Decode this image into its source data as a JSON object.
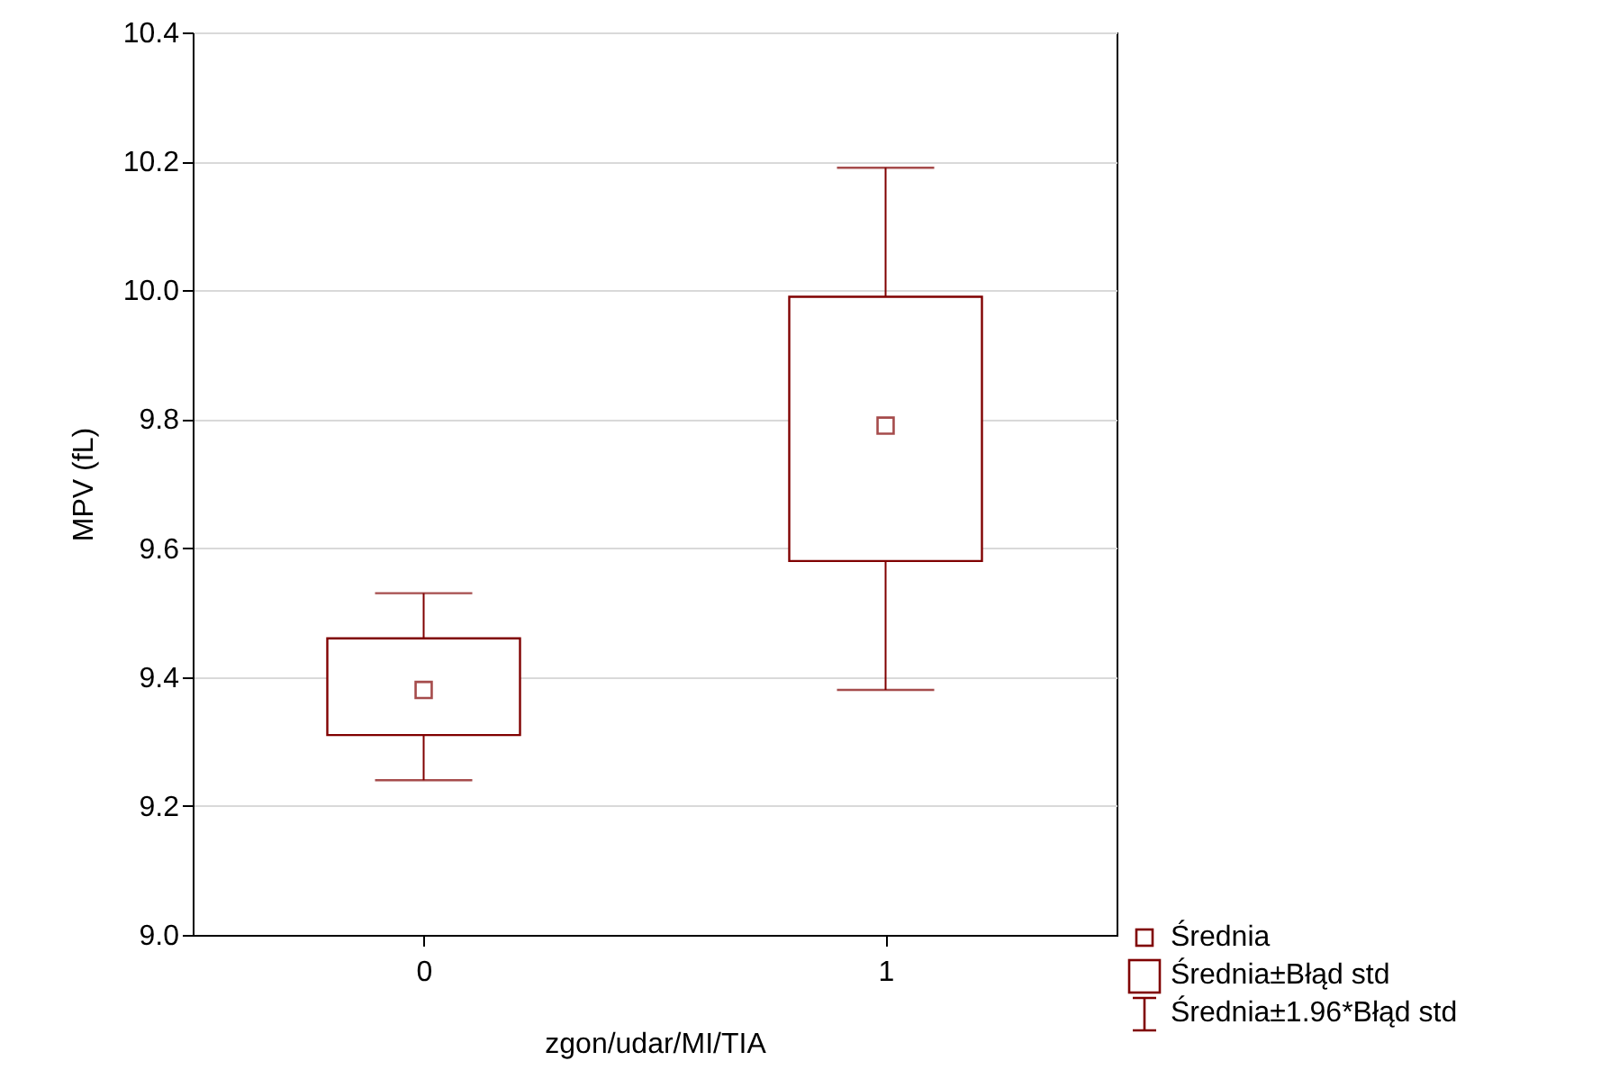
{
  "chart_data": {
    "type": "box",
    "xlabel": "zgon/udar/MI/TIA",
    "ylabel": "MPV (fL)",
    "categories": [
      "0",
      "1"
    ],
    "boxes": [
      {
        "low": 9.24,
        "q1": 9.31,
        "median": 9.38,
        "q3": 9.46,
        "high": 9.53
      },
      {
        "low": 9.38,
        "q1": 9.58,
        "median": 9.79,
        "q3": 9.99,
        "high": 10.19
      }
    ],
    "color": "#800000",
    "ylim": [
      9.0,
      10.4
    ],
    "yticks": [
      {
        "value": 9.0,
        "label": "9.0"
      },
      {
        "value": 9.2,
        "label": "9.2"
      },
      {
        "value": 9.4,
        "label": "9.4"
      },
      {
        "value": 9.6,
        "label": "9.6"
      },
      {
        "value": 9.8,
        "label": "9.8"
      },
      {
        "value": 10.0,
        "label": "10.0"
      },
      {
        "value": 10.2,
        "label": "10.2"
      },
      {
        "value": 10.4,
        "label": "10.4"
      }
    ],
    "grid": "y",
    "marker": "square",
    "annotations": [
      "Średnia",
      "Średnia±Błąd std",
      "Średnia±1.96*Błąd std"
    ]
  }
}
